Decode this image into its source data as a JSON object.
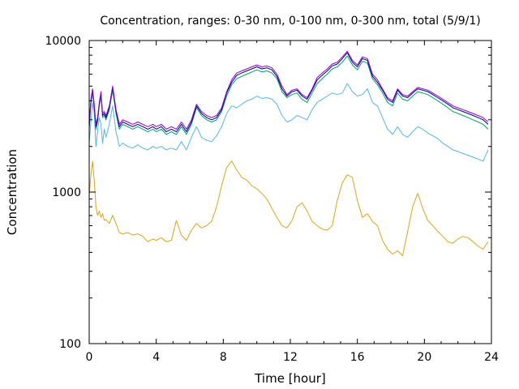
{
  "chart_data": {
    "type": "line",
    "title": "Concentration, ranges: 0-30 nm, 0-100 nm, 0-300 nm, total (5/9/1)",
    "xlabel": "Time [hour]",
    "ylabel": "Concentration",
    "xlim": [
      0,
      24
    ],
    "ylim": [
      100,
      10000
    ],
    "yscale": "log",
    "grid": false,
    "legend": "none",
    "x_ticks": [
      "0",
      "4",
      "8",
      "12",
      "16",
      "20",
      "24"
    ],
    "x_tick_values": [
      0,
      4,
      8,
      12,
      16,
      20,
      24
    ],
    "y_ticks": [
      "100",
      "1000",
      "10000"
    ],
    "y_tick_values": [
      100,
      1000,
      10000
    ],
    "series": [
      {
        "color": "#daa520",
        "x": [
          0,
          0.1,
          0.2,
          0.3,
          0.4,
          0.5,
          0.6,
          0.7,
          0.8,
          0.9,
          1.0,
          1.2,
          1.4,
          1.6,
          1.8,
          2.0,
          2.3,
          2.6,
          2.9,
          3.2,
          3.5,
          3.8,
          4.0,
          4.3,
          4.6,
          4.9,
          5.2,
          5.5,
          5.8,
          6.1,
          6.4,
          6.7,
          7.0,
          7.3,
          7.6,
          7.9,
          8.2,
          8.5,
          8.8,
          9.1,
          9.4,
          9.7,
          10.0,
          10.3,
          10.6,
          10.9,
          11.2,
          11.5,
          11.8,
          12.1,
          12.4,
          12.7,
          13.0,
          13.3,
          13.6,
          13.9,
          14.2,
          14.5,
          14.8,
          15.1,
          15.4,
          15.7,
          16.0,
          16.3,
          16.6,
          16.9,
          17.2,
          17.5,
          17.8,
          18.1,
          18.4,
          18.7,
          19.0,
          19.3,
          19.6,
          19.9,
          20.2,
          20.5,
          20.8,
          21.1,
          21.4,
          21.7,
          22.0,
          22.3,
          22.6,
          22.9,
          23.2,
          23.5,
          23.8
        ],
        "y": [
          950,
          1300,
          1600,
          1200,
          800,
          700,
          750,
          680,
          720,
          650,
          660,
          620,
          700,
          620,
          540,
          530,
          540,
          520,
          530,
          510,
          470,
          490,
          480,
          500,
          470,
          480,
          650,
          520,
          480,
          560,
          620,
          580,
          600,
          640,
          800,
          1100,
          1450,
          1600,
          1400,
          1250,
          1200,
          1100,
          1050,
          980,
          900,
          780,
          680,
          600,
          580,
          650,
          800,
          850,
          750,
          640,
          600,
          570,
          560,
          600,
          880,
          1150,
          1300,
          1250,
          880,
          680,
          720,
          640,
          600,
          480,
          420,
          390,
          410,
          380,
          550,
          800,
          980,
          780,
          650,
          600,
          550,
          510,
          470,
          460,
          490,
          510,
          500,
          470,
          440,
          420,
          470
        ]
      },
      {
        "color": "#56b4e9",
        "x": [
          0,
          0.1,
          0.2,
          0.3,
          0.4,
          0.5,
          0.6,
          0.7,
          0.8,
          0.9,
          1.0,
          1.2,
          1.4,
          1.6,
          1.8,
          2.0,
          2.3,
          2.6,
          2.9,
          3.2,
          3.5,
          3.8,
          4.0,
          4.3,
          4.6,
          4.9,
          5.2,
          5.5,
          5.8,
          6.1,
          6.4,
          6.7,
          7.0,
          7.3,
          7.6,
          7.9,
          8.2,
          8.5,
          8.8,
          9.1,
          9.4,
          9.7,
          10.0,
          10.3,
          10.6,
          10.9,
          11.2,
          11.5,
          11.8,
          12.1,
          12.4,
          12.7,
          13.0,
          13.3,
          13.6,
          13.9,
          14.2,
          14.5,
          14.8,
          15.1,
          15.4,
          15.7,
          16.0,
          16.3,
          16.6,
          16.9,
          17.2,
          17.5,
          17.8,
          18.1,
          18.4,
          18.7,
          19.0,
          19.3,
          19.6,
          19.9,
          20.2,
          20.5,
          20.8,
          21.1,
          21.4,
          21.7,
          22.0,
          22.3,
          22.6,
          22.9,
          23.2,
          23.5,
          23.8
        ],
        "y": [
          2100,
          2900,
          3900,
          3300,
          2000,
          2500,
          3100,
          2800,
          2100,
          2600,
          2300,
          2800,
          3700,
          2500,
          2000,
          2100,
          2000,
          1950,
          2050,
          1950,
          1900,
          2000,
          1950,
          2000,
          1900,
          1950,
          1900,
          2150,
          1900,
          2300,
          2700,
          2300,
          2200,
          2150,
          2350,
          2700,
          3300,
          3700,
          3600,
          3800,
          4000,
          4100,
          4300,
          4150,
          4200,
          4100,
          3800,
          3200,
          2900,
          3000,
          3200,
          3100,
          3000,
          3500,
          3900,
          4100,
          4300,
          4500,
          4400,
          4500,
          5200,
          4600,
          4300,
          4400,
          4800,
          3900,
          3700,
          3100,
          2600,
          2400,
          2700,
          2400,
          2300,
          2500,
          2700,
          2600,
          2450,
          2350,
          2250,
          2100,
          2000,
          1900,
          1850,
          1800,
          1750,
          1700,
          1650,
          1600,
          1900
        ]
      },
      {
        "color": "#009e73",
        "x": [
          0,
          0.1,
          0.2,
          0.3,
          0.4,
          0.5,
          0.6,
          0.7,
          0.8,
          0.9,
          1.0,
          1.2,
          1.4,
          1.6,
          1.8,
          2.0,
          2.3,
          2.6,
          2.9,
          3.2,
          3.5,
          3.8,
          4.0,
          4.3,
          4.6,
          4.9,
          5.2,
          5.5,
          5.8,
          6.1,
          6.4,
          6.7,
          7.0,
          7.3,
          7.6,
          7.9,
          8.2,
          8.5,
          8.8,
          9.1,
          9.4,
          9.7,
          10.0,
          10.3,
          10.6,
          10.9,
          11.2,
          11.5,
          11.8,
          12.1,
          12.4,
          12.7,
          13.0,
          13.3,
          13.6,
          13.9,
          14.2,
          14.5,
          14.8,
          15.1,
          15.4,
          15.7,
          16.0,
          16.3,
          16.6,
          16.9,
          17.2,
          17.5,
          17.8,
          18.1,
          18.4,
          18.7,
          19.0,
          19.3,
          19.6,
          19.9,
          20.2,
          20.5,
          20.8,
          21.1,
          21.4,
          21.7,
          22.0,
          22.3,
          22.6,
          22.9,
          23.2,
          23.5,
          23.8
        ],
        "y": [
          2600,
          3900,
          4500,
          3600,
          2600,
          2900,
          3700,
          4300,
          3100,
          3200,
          3000,
          3500,
          4700,
          3300,
          2600,
          2800,
          2700,
          2600,
          2700,
          2600,
          2500,
          2600,
          2500,
          2600,
          2400,
          2500,
          2400,
          2700,
          2400,
          2800,
          3600,
          3200,
          3000,
          2900,
          3000,
          3400,
          4300,
          5100,
          5600,
          5800,
          6000,
          6200,
          6400,
          6200,
          6300,
          6100,
          5600,
          4600,
          4200,
          4400,
          4500,
          4100,
          3900,
          4500,
          5200,
          5600,
          6000,
          6500,
          6700,
          7200,
          7900,
          6900,
          6400,
          7300,
          7100,
          5600,
          5100,
          4500,
          3900,
          3700,
          4500,
          4100,
          4000,
          4300,
          4600,
          4500,
          4400,
          4200,
          4000,
          3800,
          3600,
          3400,
          3300,
          3200,
          3100,
          3000,
          2900,
          2800,
          2600
        ]
      },
      {
        "color": "#000080",
        "x": [
          0,
          0.1,
          0.2,
          0.3,
          0.4,
          0.5,
          0.6,
          0.7,
          0.8,
          0.9,
          1.0,
          1.2,
          1.4,
          1.6,
          1.8,
          2.0,
          2.3,
          2.6,
          2.9,
          3.2,
          3.5,
          3.8,
          4.0,
          4.3,
          4.6,
          4.9,
          5.2,
          5.5,
          5.8,
          6.1,
          6.4,
          6.7,
          7.0,
          7.3,
          7.6,
          7.9,
          8.2,
          8.5,
          8.8,
          9.1,
          9.4,
          9.7,
          10.0,
          10.3,
          10.6,
          10.9,
          11.2,
          11.5,
          11.8,
          12.1,
          12.4,
          12.7,
          13.0,
          13.3,
          13.6,
          13.9,
          14.2,
          14.5,
          14.8,
          15.1,
          15.4,
          15.7,
          16.0,
          16.3,
          16.6,
          16.9,
          17.2,
          17.5,
          17.8,
          18.1,
          18.4,
          18.7,
          19.0,
          19.3,
          19.6,
          19.9,
          20.2,
          20.5,
          20.8,
          21.1,
          21.4,
          21.7,
          22.0,
          22.3,
          22.6,
          22.9,
          23.2,
          23.5,
          23.8
        ],
        "y": [
          2700,
          4000,
          4700,
          3700,
          2700,
          3000,
          3800,
          4500,
          3200,
          3300,
          3100,
          3600,
          4900,
          3400,
          2700,
          2900,
          2800,
          2700,
          2800,
          2700,
          2600,
          2700,
          2600,
          2700,
          2500,
          2600,
          2500,
          2800,
          2500,
          2900,
          3700,
          3300,
          3100,
          3000,
          3100,
          3500,
          4500,
          5300,
          5900,
          6100,
          6300,
          6500,
          6700,
          6500,
          6600,
          6400,
          5800,
          4800,
          4300,
          4600,
          4700,
          4300,
          4100,
          4700,
          5500,
          5900,
          6300,
          6800,
          7000,
          7600,
          8300,
          7200,
          6700,
          7600,
          7400,
          5800,
          5300,
          4700,
          4100,
          3900,
          4700,
          4300,
          4200,
          4500,
          4800,
          4700,
          4600,
          4400,
          4200,
          4000,
          3800,
          3600,
          3500,
          3400,
          3300,
          3200,
          3100,
          3000,
          2800
        ]
      },
      {
        "color": "#9400d3",
        "x": [
          0,
          0.1,
          0.2,
          0.3,
          0.4,
          0.5,
          0.6,
          0.7,
          0.8,
          0.9,
          1.0,
          1.2,
          1.4,
          1.6,
          1.8,
          2.0,
          2.3,
          2.6,
          2.9,
          3.2,
          3.5,
          3.8,
          4.0,
          4.3,
          4.6,
          4.9,
          5.2,
          5.5,
          5.8,
          6.1,
          6.4,
          6.7,
          7.0,
          7.3,
          7.6,
          7.9,
          8.2,
          8.5,
          8.8,
          9.1,
          9.4,
          9.7,
          10.0,
          10.3,
          10.6,
          10.9,
          11.2,
          11.5,
          11.8,
          12.1,
          12.4,
          12.7,
          13.0,
          13.3,
          13.6,
          13.9,
          14.2,
          14.5,
          14.8,
          15.1,
          15.4,
          15.7,
          16.0,
          16.3,
          16.6,
          16.9,
          17.2,
          17.5,
          17.8,
          18.1,
          18.4,
          18.7,
          19.0,
          19.3,
          19.6,
          19.9,
          20.2,
          20.5,
          20.8,
          21.1,
          21.4,
          21.7,
          22.0,
          22.3,
          22.6,
          22.9,
          23.2,
          23.5,
          23.8
        ],
        "y": [
          2800,
          4100,
          4800,
          3800,
          2800,
          3100,
          3900,
          4600,
          3300,
          3400,
          3200,
          3700,
          5000,
          3500,
          2800,
          3000,
          2900,
          2800,
          2900,
          2800,
          2700,
          2800,
          2700,
          2800,
          2600,
          2700,
          2600,
          2900,
          2600,
          3000,
          3800,
          3400,
          3200,
          3100,
          3200,
          3600,
          4600,
          5500,
          6100,
          6300,
          6500,
          6700,
          6900,
          6700,
          6800,
          6600,
          6000,
          5000,
          4400,
          4700,
          4800,
          4400,
          4200,
          4800,
          5700,
          6100,
          6500,
          7000,
          7200,
          7800,
          8500,
          7400,
          6900,
          7800,
          7600,
          6000,
          5500,
          4800,
          4200,
          4000,
          4800,
          4400,
          4300,
          4600,
          4900,
          4800,
          4700,
          4500,
          4300,
          4100,
          3900,
          3700,
          3600,
          3500,
          3400,
          3300,
          3200,
          3100,
          2900
        ]
      }
    ]
  }
}
